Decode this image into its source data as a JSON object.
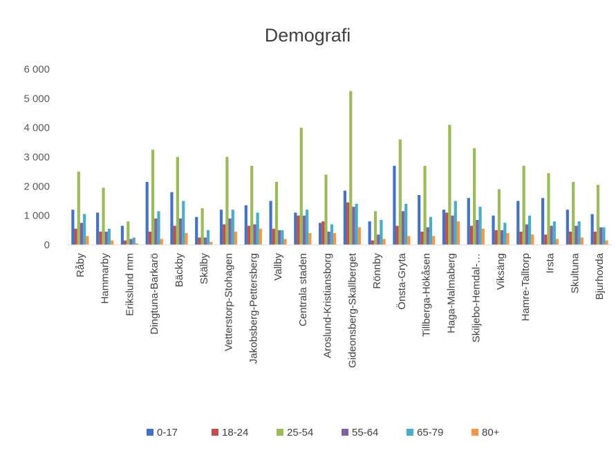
{
  "chart_data": {
    "type": "bar",
    "title": "Demografi",
    "xlabel": "",
    "ylabel": "",
    "ylim": [
      0,
      6000
    ],
    "y_ticks": [
      "0",
      "1 000",
      "2 000",
      "3 000",
      "4 000",
      "5 000",
      "6 000"
    ],
    "grid": false,
    "legend_position": "bottom",
    "categories": [
      "Råby",
      "Hammarby",
      "Erikslund mm",
      "Dingtuna-Barkarö",
      "Bäckby",
      "Skälby",
      "Vetterstorp-Stohagen",
      "Jakobsberg-Pettersberg",
      "Vallby",
      "Centrala staden",
      "Aroslund-Kristiansborg",
      "Gideonsberg-Skallberget",
      "Rönnby",
      "Önsta-Gryta",
      "Tillberga-Hökåsen",
      "Haga-Malmaberg",
      "Skiljebo-Hemdal-…",
      "Viksäng",
      "Hamre-Talltorp",
      "Irsta",
      "Skultuna",
      "Bjurhovda"
    ],
    "series": [
      {
        "name": "0-17",
        "color": "#4472C4",
        "values": [
          1200,
          1100,
          650,
          2150,
          1800,
          950,
          1200,
          1350,
          1500,
          1100,
          750,
          1850,
          800,
          2700,
          1700,
          1200,
          1600,
          1000,
          1500,
          1600,
          1200,
          1050
        ]
      },
      {
        "name": "18-24",
        "color": "#C0504D",
        "values": [
          550,
          450,
          150,
          450,
          650,
          250,
          700,
          650,
          550,
          1000,
          800,
          1450,
          150,
          650,
          450,
          1100,
          650,
          500,
          450,
          350,
          450,
          450
        ]
      },
      {
        "name": "25-54",
        "color": "#9BBB59",
        "values": [
          2500,
          1950,
          800,
          3250,
          3000,
          1250,
          3000,
          2700,
          2150,
          4000,
          2400,
          5250,
          1150,
          3600,
          2700,
          4100,
          3300,
          1900,
          2700,
          2450,
          2150,
          2050
        ]
      },
      {
        "name": "55-64",
        "color": "#8064A2",
        "values": [
          750,
          450,
          200,
          900,
          900,
          250,
          900,
          700,
          500,
          1000,
          450,
          1300,
          350,
          1150,
          600,
          1000,
          850,
          500,
          700,
          650,
          650,
          600
        ]
      },
      {
        "name": "65-79",
        "color": "#4BACC6",
        "values": [
          1050,
          550,
          250,
          1150,
          1500,
          500,
          1200,
          1100,
          500,
          1200,
          700,
          1400,
          850,
          1400,
          950,
          1500,
          1300,
          750,
          1000,
          800,
          800,
          600
        ]
      },
      {
        "name": "80+",
        "color": "#F79646",
        "values": [
          300,
          150,
          50,
          200,
          400,
          100,
          450,
          550,
          200,
          400,
          400,
          600,
          200,
          300,
          300,
          800,
          550,
          400,
          350,
          200,
          250,
          150
        ]
      }
    ]
  }
}
